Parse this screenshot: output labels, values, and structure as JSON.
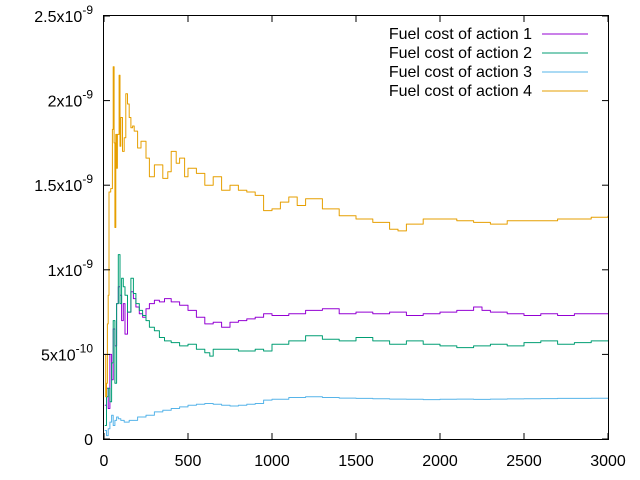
{
  "chart_data": {
    "type": "line",
    "title": "",
    "xlabel": "",
    "ylabel": "",
    "xlim": [
      0,
      3000
    ],
    "ylim": [
      0,
      2.5e-09
    ],
    "grid": false,
    "legend_position": "top-right",
    "x_ticks": [
      {
        "value": 0,
        "label": "0"
      },
      {
        "value": 500,
        "label": "500"
      },
      {
        "value": 1000,
        "label": "1000"
      },
      {
        "value": 1500,
        "label": "1500"
      },
      {
        "value": 2000,
        "label": "2000"
      },
      {
        "value": 2500,
        "label": "2500"
      },
      {
        "value": 3000,
        "label": "3000"
      }
    ],
    "y_ticks": [
      {
        "value": 0,
        "mantissa": "0",
        "exponent": ""
      },
      {
        "value": 5e-10,
        "mantissa": "5x10",
        "exponent": "-10"
      },
      {
        "value": 1e-09,
        "mantissa": "1x10",
        "exponent": "-9"
      },
      {
        "value": 1.5e-09,
        "mantissa": "1.5x10",
        "exponent": "-9"
      },
      {
        "value": 2e-09,
        "mantissa": "2x10",
        "exponent": "-9"
      },
      {
        "value": 2.5e-09,
        "mantissa": "2.5x10",
        "exponent": "-9"
      }
    ],
    "series": [
      {
        "name": "Fuel cost of action 1",
        "color": "#9400d3",
        "x": [
          5,
          15,
          25,
          35,
          45,
          55,
          65,
          75,
          85,
          95,
          105,
          115,
          125,
          140,
          160,
          175,
          190,
          210,
          230,
          250,
          270,
          300,
          330,
          360,
          400,
          450,
          500,
          550,
          600,
          650,
          700,
          750,
          800,
          850,
          900,
          950,
          1000,
          1100,
          1200,
          1300,
          1400,
          1500,
          1600,
          1700,
          1800,
          1900,
          2000,
          2100,
          2200,
          2250,
          2300,
          2400,
          2500,
          2600,
          2700,
          2800,
          2900,
          3000
        ],
        "y": [
          2e-10,
          3e-10,
          1.8e-10,
          5e-10,
          3.5e-10,
          6.5e-10,
          5.5e-10,
          8e-10,
          9e-10,
          8.5e-10,
          7e-10,
          8e-10,
          6.2e-10,
          7.5e-10,
          8.7e-10,
          8.3e-10,
          7.8e-10,
          7.4e-10,
          7.2e-10,
          7.7e-10,
          8e-10,
          8.2e-10,
          8.1e-10,
          8.3e-10,
          8.1e-10,
          7.9e-10,
          7.6e-10,
          7.2e-10,
          6.8e-10,
          6.9e-10,
          6.6e-10,
          6.9e-10,
          7e-10,
          7.1e-10,
          7.2e-10,
          7.4e-10,
          7.3e-10,
          7.4e-10,
          7.6e-10,
          7.7e-10,
          7.4e-10,
          7.5e-10,
          7.4e-10,
          7.5e-10,
          7.3e-10,
          7.4e-10,
          7.5e-10,
          7.6e-10,
          7.8e-10,
          7.6e-10,
          7.5e-10,
          7.4e-10,
          7.3e-10,
          7.4e-10,
          7.3e-10,
          7.4e-10,
          7.4e-10,
          7.4e-10
        ]
      },
      {
        "name": "Fuel cost of action 2",
        "color": "#009e73",
        "x": [
          5,
          15,
          25,
          35,
          45,
          55,
          65,
          75,
          85,
          95,
          105,
          115,
          125,
          140,
          160,
          175,
          190,
          210,
          230,
          250,
          270,
          300,
          330,
          360,
          400,
          450,
          500,
          550,
          600,
          630,
          650,
          700,
          800,
          900,
          950,
          1000,
          1100,
          1200,
          1300,
          1400,
          1500,
          1600,
          1700,
          1800,
          1900,
          2000,
          2100,
          2200,
          2300,
          2400,
          2500,
          2600,
          2700,
          2800,
          2900,
          3000
        ],
        "y": [
          8e-11,
          2.5e-10,
          3e-10,
          2.2e-10,
          4.5e-10,
          7e-10,
          3.3e-10,
          8e-10,
          1.09e-09,
          8e-10,
          9.5e-10,
          9e-10,
          8.5e-10,
          7.5e-10,
          9.5e-10,
          8.6e-10,
          8e-10,
          7.6e-10,
          7.3e-10,
          7e-10,
          6.6e-10,
          6.4e-10,
          6e-10,
          5.8e-10,
          5.7e-10,
          5.5e-10,
          5.6e-10,
          5.3e-10,
          5.1e-10,
          4.9e-10,
          5.3e-10,
          5.3e-10,
          5.2e-10,
          5.3e-10,
          5.2e-10,
          5.6e-10,
          5.8e-10,
          6.1e-10,
          5.9e-10,
          5.8e-10,
          6e-10,
          5.8e-10,
          5.6e-10,
          5.8e-10,
          5.6e-10,
          5.5e-10,
          5.4e-10,
          5.5e-10,
          5.6e-10,
          5.5e-10,
          5.7e-10,
          5.8e-10,
          5.6e-10,
          5.7e-10,
          5.8e-10,
          5.8e-10
        ]
      },
      {
        "name": "Fuel cost of action 3",
        "color": "#56b4e9",
        "x": [
          5,
          15,
          25,
          35,
          45,
          55,
          65,
          75,
          85,
          100,
          120,
          150,
          200,
          250,
          300,
          350,
          400,
          450,
          500,
          550,
          600,
          650,
          700,
          750,
          800,
          850,
          900,
          950,
          1000,
          1100,
          1200,
          1300,
          1400,
          1500,
          1600,
          1700,
          1800,
          1900,
          2000,
          2100,
          2200,
          2300,
          2400,
          2500,
          2600,
          2700,
          2800,
          2900,
          3000
        ],
        "y": [
          5e-11,
          2e-11,
          6e-11,
          1e-10,
          1.4e-10,
          8e-11,
          1.1e-10,
          1.3e-10,
          1.2e-10,
          1.1e-10,
          1e-10,
          1.1e-10,
          1.3e-10,
          1.4e-10,
          1.6e-10,
          1.7e-10,
          1.8e-10,
          1.9e-10,
          2e-10,
          2.05e-10,
          2.1e-10,
          2.05e-10,
          2e-10,
          1.95e-10,
          2e-10,
          2.05e-10,
          2.1e-10,
          2.3e-10,
          2.35e-10,
          2.45e-10,
          2.5e-10,
          2.45e-10,
          2.42e-10,
          2.4e-10,
          2.38e-10,
          2.36e-10,
          2.35e-10,
          2.33e-10,
          2.35e-10,
          2.36e-10,
          2.34e-10,
          2.36e-10,
          2.37e-10,
          2.38e-10,
          2.39e-10,
          2.4e-10,
          2.4e-10,
          2.41e-10,
          2.42e-10
        ]
      },
      {
        "name": "Fuel cost of action 4",
        "color": "#e69f00",
        "x": [
          5,
          10,
          15,
          20,
          25,
          30,
          40,
          50,
          55,
          60,
          65,
          70,
          75,
          80,
          90,
          95,
          100,
          110,
          120,
          130,
          140,
          150,
          160,
          170,
          180,
          200,
          220,
          250,
          270,
          300,
          350,
          380,
          400,
          430,
          450,
          480,
          500,
          550,
          600,
          650,
          700,
          750,
          800,
          850,
          900,
          950,
          1000,
          1050,
          1100,
          1150,
          1200,
          1300,
          1400,
          1500,
          1600,
          1700,
          1750,
          1800,
          1900,
          2000,
          2100,
          2200,
          2300,
          2400,
          2500,
          2600,
          2700,
          2800,
          2900,
          3000
        ],
        "y": [
          5e-10,
          2.5e-10,
          3.3e-10,
          6.8e-10,
          8.5e-10,
          1.46e-09,
          1.48e-09,
          1.83e-09,
          2.2e-09,
          1.75e-09,
          1.25e-09,
          1.8e-09,
          1.6e-09,
          1.8e-09,
          2.15e-09,
          1.73e-09,
          1.9e-09,
          1.7e-09,
          1.78e-09,
          2.04e-09,
          1.98e-09,
          1.9e-09,
          1.84e-09,
          1.85e-09,
          1.82e-09,
          1.72e-09,
          1.76e-09,
          1.66e-09,
          1.55e-09,
          1.62e-09,
          1.54e-09,
          1.58e-09,
          1.7e-09,
          1.63e-09,
          1.66e-09,
          1.55e-09,
          1.6e-09,
          1.57e-09,
          1.5e-09,
          1.55e-09,
          1.47e-09,
          1.5e-09,
          1.47e-09,
          1.46e-09,
          1.44e-09,
          1.35e-09,
          1.36e-09,
          1.4e-09,
          1.43e-09,
          1.38e-09,
          1.42e-09,
          1.36e-09,
          1.32e-09,
          1.3e-09,
          1.28e-09,
          1.24e-09,
          1.23e-09,
          1.27e-09,
          1.3e-09,
          1.3e-09,
          1.29e-09,
          1.28e-09,
          1.27e-09,
          1.29e-09,
          1.29e-09,
          1.29e-09,
          1.3e-09,
          1.3e-09,
          1.31e-09,
          1.32e-09
        ]
      }
    ]
  }
}
